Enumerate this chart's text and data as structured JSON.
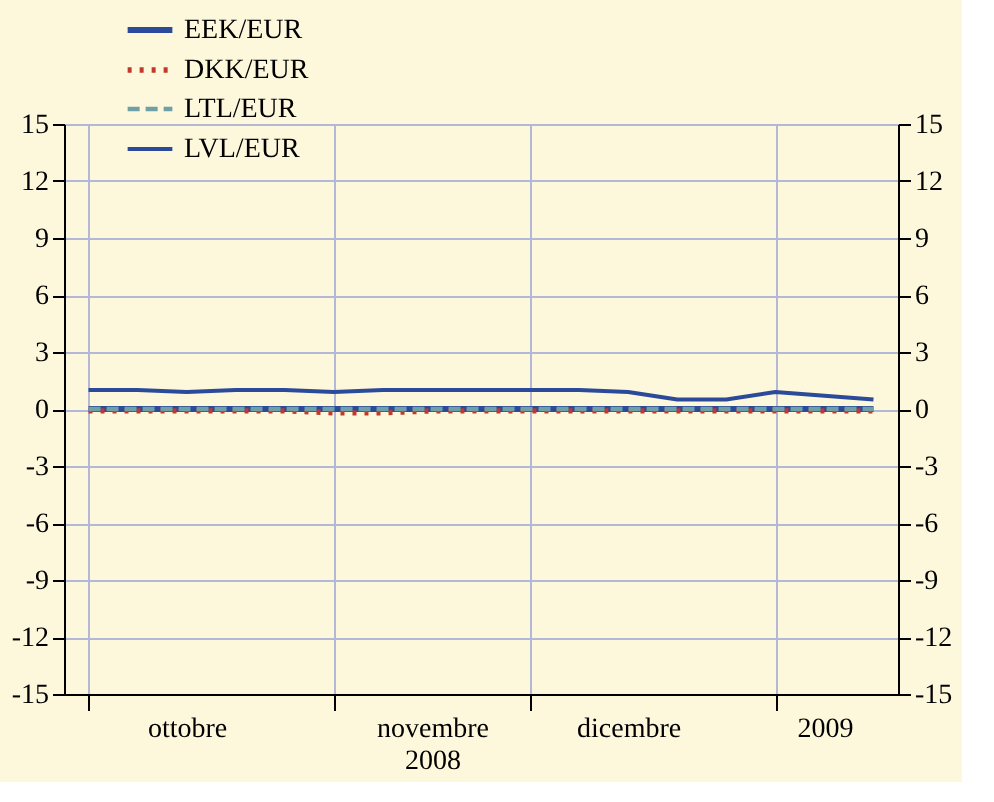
{
  "chart_data": {
    "type": "line",
    "legend": "top left",
    "grid": true,
    "categories": [
      null,
      null,
      "ottobre",
      null,
      null,
      null,
      null,
      "novembre\n2008",
      null,
      null,
      null,
      "dicembre",
      null,
      null,
      null,
      "2009",
      null
    ],
    "ylim": [
      -15,
      15
    ],
    "yticks": [
      -15,
      -12,
      -9,
      -6,
      -3,
      0,
      3,
      6,
      9,
      12,
      15
    ],
    "y2lim": [
      -15,
      15
    ],
    "y2ticks": [
      -15,
      -12,
      -9,
      -6,
      -3,
      0,
      3,
      6,
      9,
      12,
      15
    ],
    "series": [
      {
        "name": "EEK/EUR",
        "color": "#2b4a9a",
        "line_style": "solid",
        "values": [
          0,
          0,
          0,
          0,
          0,
          0,
          0,
          0,
          0,
          0,
          0,
          0,
          0,
          0,
          0,
          0,
          0
        ]
      },
      {
        "name": "DKK/EUR",
        "color": "#c0392b",
        "line_style": "dotted",
        "values": [
          -0.1,
          -0.1,
          -0.1,
          -0.1,
          -0.1,
          -0.2,
          -0.2,
          -0.1,
          -0.1,
          -0.1,
          -0.1,
          -0.1,
          -0.1,
          -0.1,
          -0.1,
          -0.1,
          -0.1
        ]
      },
      {
        "name": "LTL/EUR",
        "color": "#6fa0a8",
        "line_style": "dashed",
        "values": [
          0,
          0,
          0,
          0,
          0,
          0,
          0,
          0,
          0,
          0,
          0,
          0,
          0,
          0,
          0,
          0,
          0
        ]
      },
      {
        "name": "LVL/EUR",
        "color": "#2b4a9a",
        "line_style": "solid",
        "values": [
          1.0,
          1.0,
          0.9,
          1.0,
          1.0,
          0.9,
          1.0,
          1.0,
          1.0,
          1.0,
          1.0,
          0.9,
          0.5,
          0.5,
          0.9,
          0.7,
          0.5
        ]
      }
    ]
  }
}
